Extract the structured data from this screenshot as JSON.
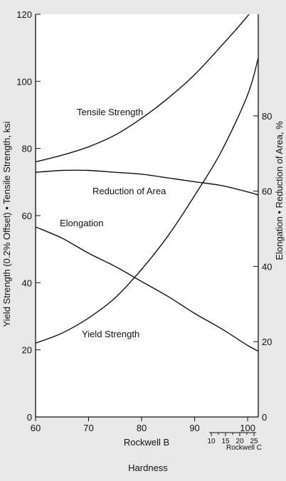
{
  "colors": {
    "background": "#e8e8e8",
    "plot_background": "#ffffff",
    "line": "#111111"
  },
  "chart_data": {
    "type": "line",
    "x_axis": {
      "label": "Rockwell B",
      "ticks": [
        60,
        70,
        80,
        90,
        100
      ],
      "range": [
        60,
        102
      ]
    },
    "secondary_x_axis": {
      "label": "Rockwell C",
      "ticks": [
        10,
        15,
        20,
        25
      ]
    },
    "bottom_label": "Hardness",
    "y_left": {
      "label": "Yield Strength (0.2% Offset) • Tensile Strength, ksi",
      "ticks": [
        0,
        20,
        40,
        60,
        80,
        100,
        120
      ],
      "range": [
        0,
        120
      ]
    },
    "y_right": {
      "label": "Elongation • Reduction of Area, %",
      "ticks": [
        0,
        20,
        40,
        60,
        80
      ],
      "range": [
        0,
        107
      ]
    },
    "series": [
      {
        "name": "Tensile Strength",
        "axis": "left",
        "points": [
          [
            60,
            76
          ],
          [
            65,
            78
          ],
          [
            70,
            80.5
          ],
          [
            75,
            84
          ],
          [
            80,
            89
          ],
          [
            85,
            95
          ],
          [
            90,
            102
          ],
          [
            95,
            110.5
          ],
          [
            100,
            119.5
          ],
          [
            102,
            124
          ]
        ]
      },
      {
        "name": "Reduction of Area",
        "axis": "right",
        "points": [
          [
            60,
            65
          ],
          [
            65,
            65.5
          ],
          [
            70,
            65.5
          ],
          [
            75,
            65
          ],
          [
            80,
            64.5
          ],
          [
            85,
            63.5
          ],
          [
            90,
            62.5
          ],
          [
            95,
            61.5
          ],
          [
            100,
            59.8
          ],
          [
            102,
            59
          ]
        ]
      },
      {
        "name": "Elongation",
        "axis": "right",
        "points": [
          [
            60,
            50.5
          ],
          [
            65,
            47.5
          ],
          [
            70,
            43.5
          ],
          [
            75,
            40
          ],
          [
            80,
            36
          ],
          [
            85,
            32
          ],
          [
            90,
            27.5
          ],
          [
            95,
            23.5
          ],
          [
            100,
            19
          ],
          [
            102,
            17.5
          ]
        ]
      },
      {
        "name": "Yield Strength",
        "axis": "left",
        "points": [
          [
            60,
            22
          ],
          [
            65,
            25
          ],
          [
            70,
            29.5
          ],
          [
            75,
            35.5
          ],
          [
            80,
            44
          ],
          [
            85,
            54
          ],
          [
            90,
            66
          ],
          [
            95,
            79
          ],
          [
            100,
            96
          ],
          [
            102,
            107
          ]
        ]
      }
    ]
  }
}
